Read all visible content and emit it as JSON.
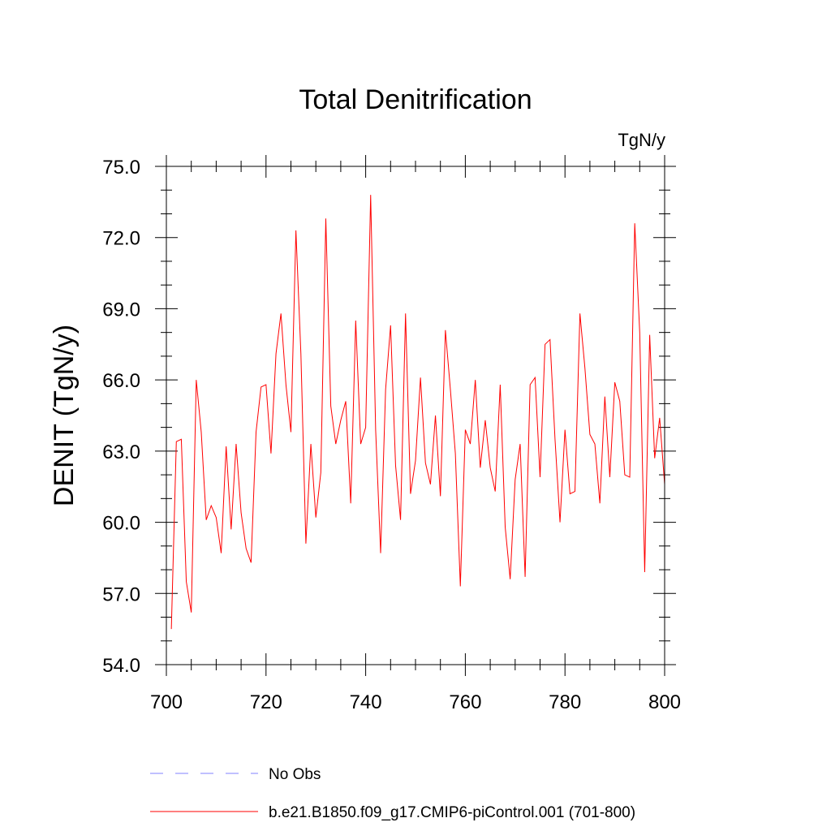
{
  "chart_data": {
    "type": "line",
    "title": "Total Denitrification",
    "units_label": "TgN/y",
    "xlabel": "",
    "ylabel": "DENIT  (TgN/y)",
    "xlim": [
      700,
      800
    ],
    "ylim": [
      54.0,
      75.0
    ],
    "x_ticks": [
      "700",
      "720",
      "740",
      "760",
      "780",
      "800"
    ],
    "y_ticks": [
      "54.0",
      "57.0",
      "60.0",
      "63.0",
      "66.0",
      "69.0",
      "72.0",
      "75.0"
    ],
    "grid": false,
    "legend_position": "bottom",
    "series": [
      {
        "name": "No Obs",
        "color": "#8080ff",
        "style": "dashed",
        "x": [],
        "values": []
      },
      {
        "name": "b.e21.B1850.f09_g17.CMIP6-piControl.001 (701-800)",
        "color": "#ff0000",
        "style": "solid",
        "x": [
          701,
          702,
          703,
          704,
          705,
          706,
          707,
          708,
          709,
          710,
          711,
          712,
          713,
          714,
          715,
          716,
          717,
          718,
          719,
          720,
          721,
          722,
          723,
          724,
          725,
          726,
          727,
          728,
          729,
          730,
          731,
          732,
          733,
          734,
          735,
          736,
          737,
          738,
          739,
          740,
          741,
          742,
          743,
          744,
          745,
          746,
          747,
          748,
          749,
          750,
          751,
          752,
          753,
          754,
          755,
          756,
          757,
          758,
          759,
          760,
          761,
          762,
          763,
          764,
          765,
          766,
          767,
          768,
          769,
          770,
          771,
          772,
          773,
          774,
          775,
          776,
          777,
          778,
          779,
          780,
          781,
          782,
          783,
          784,
          785,
          786,
          787,
          788,
          789,
          790,
          791,
          792,
          793,
          794,
          795,
          796,
          797,
          798,
          799,
          800
        ],
        "values": [
          55.5,
          63.4,
          63.5,
          57.5,
          56.2,
          66.0,
          63.8,
          60.1,
          60.7,
          60.2,
          58.7,
          63.2,
          59.7,
          63.3,
          60.4,
          58.9,
          58.3,
          63.8,
          65.7,
          65.8,
          62.9,
          67.1,
          68.8,
          65.8,
          63.8,
          72.3,
          67.1,
          59.1,
          63.3,
          60.2,
          62.1,
          72.8,
          64.9,
          63.3,
          64.3,
          65.1,
          60.8,
          68.5,
          63.3,
          64.0,
          73.8,
          63.9,
          58.7,
          65.6,
          68.3,
          62.4,
          60.1,
          68.8,
          61.2,
          62.6,
          66.1,
          62.5,
          61.6,
          64.5,
          61.1,
          68.1,
          65.6,
          62.9,
          57.3,
          63.9,
          63.3,
          66.0,
          62.3,
          64.3,
          62.3,
          61.3,
          65.8,
          59.8,
          57.6,
          61.8,
          63.3,
          57.7,
          65.8,
          66.1,
          61.9,
          67.5,
          67.7,
          63.5,
          60.0,
          63.9,
          61.2,
          61.3,
          68.8,
          66.5,
          63.7,
          63.3,
          60.8,
          65.3,
          61.9,
          65.9,
          65.1,
          62.0,
          61.9,
          72.6,
          68.0,
          57.9,
          67.9,
          62.7,
          64.4,
          61.6
        ]
      }
    ]
  }
}
